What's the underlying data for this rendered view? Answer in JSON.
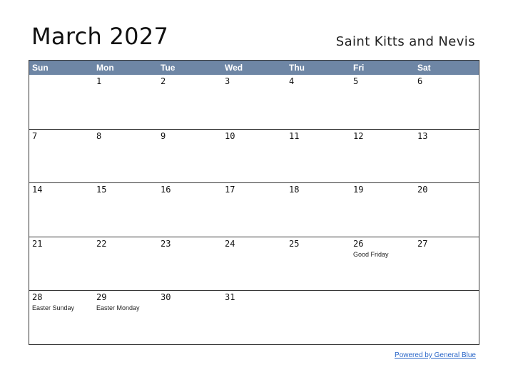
{
  "header": {
    "title": "March 2027",
    "region": "Saint Kitts and Nevis"
  },
  "calendar": {
    "weekdays": [
      "Sun",
      "Mon",
      "Tue",
      "Wed",
      "Thu",
      "Fri",
      "Sat"
    ],
    "weeks": [
      [
        {
          "day": ""
        },
        {
          "day": "1"
        },
        {
          "day": "2"
        },
        {
          "day": "3"
        },
        {
          "day": "4"
        },
        {
          "day": "5"
        },
        {
          "day": "6"
        }
      ],
      [
        {
          "day": "7"
        },
        {
          "day": "8"
        },
        {
          "day": "9"
        },
        {
          "day": "10"
        },
        {
          "day": "11"
        },
        {
          "day": "12"
        },
        {
          "day": "13"
        }
      ],
      [
        {
          "day": "14"
        },
        {
          "day": "15"
        },
        {
          "day": "16"
        },
        {
          "day": "17"
        },
        {
          "day": "18"
        },
        {
          "day": "19"
        },
        {
          "day": "20"
        }
      ],
      [
        {
          "day": "21"
        },
        {
          "day": "22"
        },
        {
          "day": "23"
        },
        {
          "day": "24"
        },
        {
          "day": "25"
        },
        {
          "day": "26",
          "holiday": "Good Friday"
        },
        {
          "day": "27"
        }
      ],
      [
        {
          "day": "28",
          "holiday": "Easter Sunday"
        },
        {
          "day": "29",
          "holiday": "Easter Monday"
        },
        {
          "day": "30"
        },
        {
          "day": "31"
        },
        {
          "day": ""
        },
        {
          "day": ""
        },
        {
          "day": ""
        }
      ]
    ]
  },
  "footer": {
    "credit": "Powered by General Blue"
  },
  "colors": {
    "header_bg": "#6e86a5",
    "header_text": "#ffffff",
    "link": "#2a66c8"
  }
}
